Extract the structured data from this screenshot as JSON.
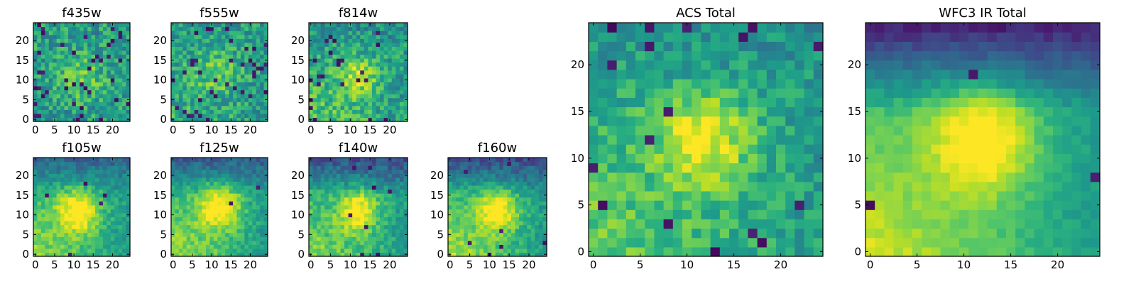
{
  "colors": {
    "frame": "#000000",
    "background": "#ffffff",
    "colormap": "viridis"
  },
  "chart_data": [
    {
      "type": "heatmap",
      "title": "f435w",
      "grid": false,
      "xlim": [
        -0.5,
        24.5
      ],
      "ylim": [
        -0.5,
        24.5
      ],
      "xticks": [
        "0",
        "5",
        "10",
        "15",
        "20"
      ],
      "yticks": [
        "0",
        "5",
        "10",
        "15",
        "20"
      ],
      "noise": 0.38,
      "peak": 0.2,
      "center": [
        12,
        11
      ],
      "sigma": 4,
      "gradient": 0.0,
      "top_dark": 0.0,
      "dark_pixel_rate": 0.06,
      "seed": 11
    },
    {
      "type": "heatmap",
      "title": "f555w",
      "grid": false,
      "xlim": [
        -0.5,
        24.5
      ],
      "ylim": [
        -0.5,
        24.5
      ],
      "xticks": [
        "0",
        "5",
        "10",
        "15",
        "20"
      ],
      "yticks": [
        "0",
        "5",
        "10",
        "15",
        "20"
      ],
      "noise": 0.36,
      "peak": 0.2,
      "center": [
        11,
        12
      ],
      "sigma": 4,
      "gradient": 0.05,
      "top_dark": 0.0,
      "dark_pixel_rate": 0.05,
      "seed": 23
    },
    {
      "type": "heatmap",
      "title": "f814w",
      "grid": false,
      "xlim": [
        -0.5,
        24.5
      ],
      "ylim": [
        -0.5,
        24.5
      ],
      "xticks": [
        "0",
        "5",
        "10",
        "15",
        "20"
      ],
      "yticks": [
        "0",
        "5",
        "10",
        "15",
        "20"
      ],
      "noise": 0.34,
      "peak": 0.3,
      "center": [
        12,
        11
      ],
      "sigma": 3.5,
      "gradient": 0.12,
      "top_dark": 0.05,
      "dark_pixel_rate": 0.04,
      "seed": 37
    },
    {
      "type": "heatmap",
      "title": "f105w",
      "grid": false,
      "xlim": [
        -0.5,
        24.5
      ],
      "ylim": [
        -0.5,
        24.5
      ],
      "xticks": [
        "0",
        "5",
        "10",
        "15",
        "20"
      ],
      "yticks": [
        "0",
        "5",
        "10",
        "15",
        "20"
      ],
      "noise": 0.2,
      "peak": 0.45,
      "center": [
        11,
        11
      ],
      "sigma": 4,
      "gradient": 0.18,
      "top_dark": 0.22,
      "dark_pixel_rate": 0.01,
      "seed": 41
    },
    {
      "type": "heatmap",
      "title": "f125w",
      "grid": false,
      "xlim": [
        -0.5,
        24.5
      ],
      "ylim": [
        -0.5,
        24.5
      ],
      "xticks": [
        "0",
        "5",
        "10",
        "15",
        "20"
      ],
      "yticks": [
        "0",
        "5",
        "10",
        "15",
        "20"
      ],
      "noise": 0.2,
      "peak": 0.45,
      "center": [
        12,
        12
      ],
      "sigma": 4,
      "gradient": 0.2,
      "top_dark": 0.25,
      "dark_pixel_rate": 0.01,
      "seed": 53
    },
    {
      "type": "heatmap",
      "title": "f140w",
      "grid": false,
      "xlim": [
        -0.5,
        24.5
      ],
      "ylim": [
        -0.5,
        24.5
      ],
      "xticks": [
        "0",
        "5",
        "10",
        "15",
        "20"
      ],
      "yticks": [
        "0",
        "5",
        "10",
        "15",
        "20"
      ],
      "noise": 0.22,
      "peak": 0.45,
      "center": [
        12,
        11
      ],
      "sigma": 3.5,
      "gradient": 0.18,
      "top_dark": 0.3,
      "dark_pixel_rate": 0.01,
      "seed": 67
    },
    {
      "type": "heatmap",
      "title": "f160w",
      "grid": false,
      "xlim": [
        -0.5,
        24.5
      ],
      "ylim": [
        -0.5,
        24.5
      ],
      "xticks": [
        "0",
        "5",
        "10",
        "15",
        "20"
      ],
      "yticks": [
        "0",
        "5",
        "10",
        "15",
        "20"
      ],
      "noise": 0.2,
      "peak": 0.45,
      "center": [
        12,
        11
      ],
      "sigma": 3.5,
      "gradient": 0.22,
      "top_dark": 0.32,
      "dark_pixel_rate": 0.01,
      "seed": 79
    },
    {
      "type": "heatmap",
      "title": "ACS Total",
      "grid": false,
      "xlim": [
        -0.5,
        24.5
      ],
      "ylim": [
        -0.5,
        24.5
      ],
      "xticks": [
        "0",
        "5",
        "10",
        "15",
        "20"
      ],
      "yticks": [
        "0",
        "5",
        "10",
        "15",
        "20"
      ],
      "noise": 0.26,
      "peak": 0.4,
      "center": [
        12,
        12
      ],
      "sigma": 3.5,
      "gradient": 0.15,
      "top_dark": 0.05,
      "dark_pixel_rate": 0.035,
      "seed": 97
    },
    {
      "type": "heatmap",
      "title": "WFC3 IR Total",
      "grid": false,
      "xlim": [
        -0.5,
        24.5
      ],
      "ylim": [
        -0.5,
        24.5
      ],
      "xticks": [
        "0",
        "5",
        "10",
        "15",
        "20"
      ],
      "yticks": [
        "0",
        "5",
        "10",
        "15",
        "20"
      ],
      "noise": 0.1,
      "peak": 0.45,
      "center": [
        12,
        12
      ],
      "sigma": 4,
      "gradient": 0.25,
      "top_dark": 0.45,
      "dark_pixel_rate": 0.005,
      "seed": 113
    }
  ]
}
